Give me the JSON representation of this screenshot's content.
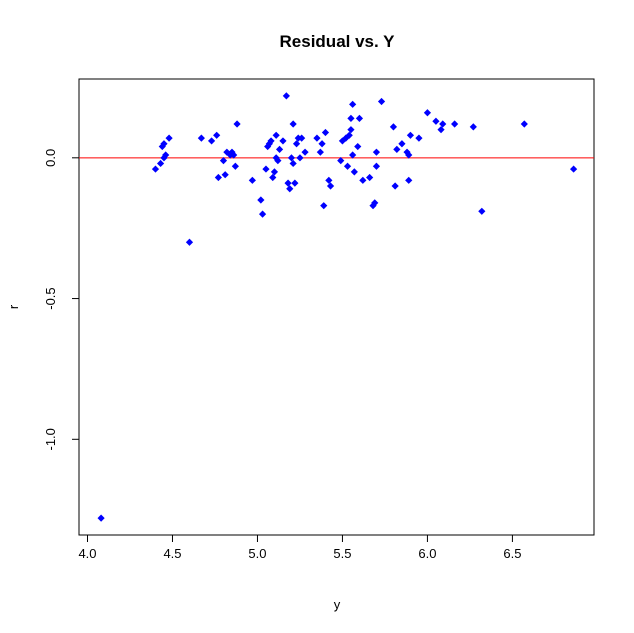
{
  "chart_data": {
    "type": "scatter",
    "title": "Residual vs. Y",
    "xlabel": "y",
    "ylabel": "r",
    "xlim": [
      3.95,
      6.98
    ],
    "ylim": [
      -1.34,
      0.28
    ],
    "xticks": [
      4.0,
      4.5,
      5.0,
      5.5,
      6.0,
      6.5
    ],
    "xtick_labels": [
      "4.0",
      "4.5",
      "5.0",
      "5.5",
      "6.0",
      "6.5"
    ],
    "yticks": [
      0.0,
      -0.5,
      -1.0
    ],
    "ytick_labels": [
      "0.0",
      "-0.5",
      "-1.0"
    ],
    "grid": false,
    "reference_line": {
      "y": 0.0,
      "color": "#ff0000"
    },
    "point_color": "#0000ff",
    "marker": "diamond",
    "points": [
      {
        "x": 4.08,
        "y": -1.28
      },
      {
        "x": 4.4,
        "y": -0.04
      },
      {
        "x": 4.43,
        "y": -0.02
      },
      {
        "x": 4.44,
        "y": 0.04
      },
      {
        "x": 4.45,
        "y": 0.05
      },
      {
        "x": 4.45,
        "y": 0.0
      },
      {
        "x": 4.46,
        "y": 0.01
      },
      {
        "x": 4.48,
        "y": 0.07
      },
      {
        "x": 4.6,
        "y": -0.3
      },
      {
        "x": 4.67,
        "y": 0.07
      },
      {
        "x": 4.73,
        "y": 0.06
      },
      {
        "x": 4.76,
        "y": 0.08
      },
      {
        "x": 4.77,
        "y": -0.07
      },
      {
        "x": 4.8,
        "y": -0.01
      },
      {
        "x": 4.81,
        "y": -0.06
      },
      {
        "x": 4.82,
        "y": 0.02
      },
      {
        "x": 4.84,
        "y": 0.01
      },
      {
        "x": 4.85,
        "y": 0.02
      },
      {
        "x": 4.86,
        "y": 0.01
      },
      {
        "x": 4.87,
        "y": -0.03
      },
      {
        "x": 4.88,
        "y": 0.12
      },
      {
        "x": 4.97,
        "y": -0.08
      },
      {
        "x": 5.02,
        "y": -0.15
      },
      {
        "x": 5.03,
        "y": -0.2
      },
      {
        "x": 5.05,
        "y": -0.04
      },
      {
        "x": 5.06,
        "y": 0.04
      },
      {
        "x": 5.07,
        "y": 0.05
      },
      {
        "x": 5.08,
        "y": 0.06
      },
      {
        "x": 5.09,
        "y": -0.07
      },
      {
        "x": 5.1,
        "y": -0.05
      },
      {
        "x": 5.11,
        "y": 0.0
      },
      {
        "x": 5.11,
        "y": 0.08
      },
      {
        "x": 5.12,
        "y": -0.01
      },
      {
        "x": 5.13,
        "y": 0.03
      },
      {
        "x": 5.15,
        "y": 0.06
      },
      {
        "x": 5.17,
        "y": 0.22
      },
      {
        "x": 5.18,
        "y": -0.09
      },
      {
        "x": 5.19,
        "y": -0.11
      },
      {
        "x": 5.2,
        "y": 0.0
      },
      {
        "x": 5.21,
        "y": -0.02
      },
      {
        "x": 5.21,
        "y": 0.12
      },
      {
        "x": 5.22,
        "y": -0.09
      },
      {
        "x": 5.23,
        "y": 0.05
      },
      {
        "x": 5.24,
        "y": 0.07
      },
      {
        "x": 5.25,
        "y": 0.0
      },
      {
        "x": 5.26,
        "y": 0.07
      },
      {
        "x": 5.28,
        "y": 0.02
      },
      {
        "x": 5.35,
        "y": 0.07
      },
      {
        "x": 5.37,
        "y": 0.02
      },
      {
        "x": 5.38,
        "y": 0.05
      },
      {
        "x": 5.39,
        "y": -0.17
      },
      {
        "x": 5.4,
        "y": 0.09
      },
      {
        "x": 5.42,
        "y": -0.08
      },
      {
        "x": 5.43,
        "y": -0.1
      },
      {
        "x": 5.49,
        "y": -0.01
      },
      {
        "x": 5.5,
        "y": 0.06
      },
      {
        "x": 5.52,
        "y": 0.07
      },
      {
        "x": 5.53,
        "y": -0.03
      },
      {
        "x": 5.54,
        "y": 0.08
      },
      {
        "x": 5.55,
        "y": 0.1
      },
      {
        "x": 5.55,
        "y": 0.14
      },
      {
        "x": 5.56,
        "y": 0.19
      },
      {
        "x": 5.56,
        "y": 0.01
      },
      {
        "x": 5.57,
        "y": -0.05
      },
      {
        "x": 5.59,
        "y": 0.04
      },
      {
        "x": 5.6,
        "y": 0.14
      },
      {
        "x": 5.62,
        "y": -0.08
      },
      {
        "x": 5.66,
        "y": -0.07
      },
      {
        "x": 5.68,
        "y": -0.17
      },
      {
        "x": 5.69,
        "y": -0.16
      },
      {
        "x": 5.7,
        "y": -0.03
      },
      {
        "x": 5.7,
        "y": 0.02
      },
      {
        "x": 5.73,
        "y": 0.2
      },
      {
        "x": 5.8,
        "y": 0.11
      },
      {
        "x": 5.81,
        "y": -0.1
      },
      {
        "x": 5.82,
        "y": 0.03
      },
      {
        "x": 5.85,
        "y": 0.05
      },
      {
        "x": 5.88,
        "y": 0.02
      },
      {
        "x": 5.89,
        "y": 0.01
      },
      {
        "x": 5.89,
        "y": -0.08
      },
      {
        "x": 5.9,
        "y": 0.08
      },
      {
        "x": 5.95,
        "y": 0.07
      },
      {
        "x": 6.0,
        "y": 0.16
      },
      {
        "x": 6.05,
        "y": 0.13
      },
      {
        "x": 6.08,
        "y": 0.1
      },
      {
        "x": 6.09,
        "y": 0.12
      },
      {
        "x": 6.16,
        "y": 0.12
      },
      {
        "x": 6.27,
        "y": 0.11
      },
      {
        "x": 6.32,
        "y": -0.19
      },
      {
        "x": 6.57,
        "y": 0.12
      },
      {
        "x": 6.86,
        "y": -0.04
      }
    ]
  }
}
